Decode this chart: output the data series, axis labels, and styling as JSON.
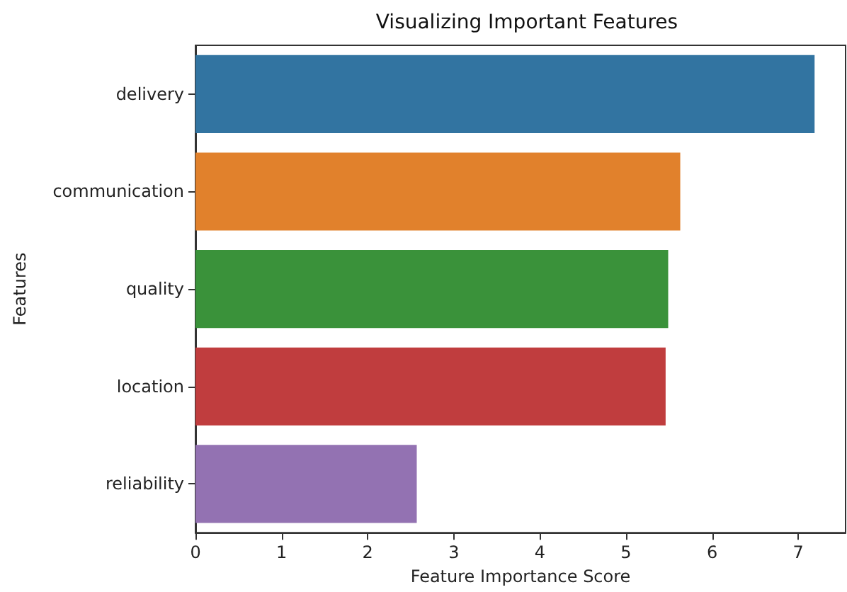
{
  "chart_data": {
    "type": "bar",
    "orientation": "horizontal",
    "title": "Visualizing Important Features",
    "xlabel": "Feature Importance Score",
    "ylabel": "Features",
    "categories": [
      "delivery",
      "communication",
      "quality",
      "location",
      "reliability"
    ],
    "values": [
      7.19,
      5.63,
      5.49,
      5.46,
      2.57
    ],
    "colors": [
      "#3274a1",
      "#e1812c",
      "#3a923a",
      "#c03d3e",
      "#9372b2"
    ],
    "xlim": [
      0,
      7.55
    ],
    "xticks": [
      0,
      1,
      2,
      3,
      4,
      5,
      6,
      7
    ],
    "grid": false
  }
}
